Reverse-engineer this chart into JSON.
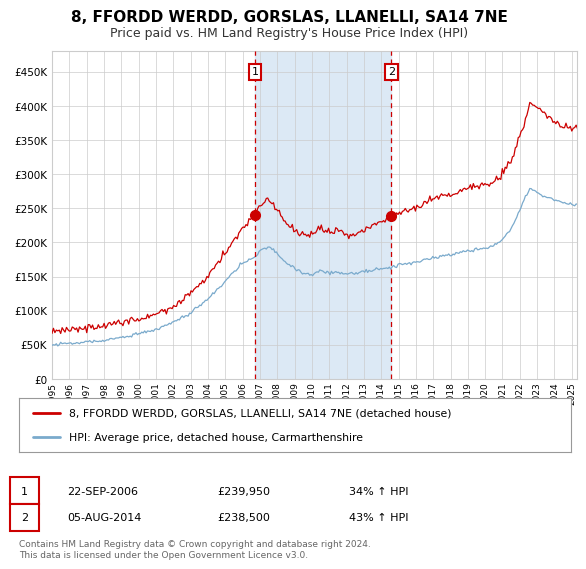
{
  "title": "8, FFORDD WERDD, GORSLAS, LLANELLI, SA14 7NE",
  "subtitle": "Price paid vs. HM Land Registry's House Price Index (HPI)",
  "red_label": "8, FFORDD WERDD, GORSLAS, LLANELLI, SA14 7NE (detached house)",
  "blue_label": "HPI: Average price, detached house, Carmarthenshire",
  "annotation1_date": "22-SEP-2006",
  "annotation1_price": "£239,950",
  "annotation1_hpi": "34% ↑ HPI",
  "annotation2_date": "05-AUG-2014",
  "annotation2_price": "£238,500",
  "annotation2_hpi": "43% ↑ HPI",
  "footer": "Contains HM Land Registry data © Crown copyright and database right 2024.\nThis data is licensed under the Open Government Licence v3.0.",
  "vline1_x": 2006.72,
  "vline2_x": 2014.58,
  "marker1_y": 239950,
  "marker2_y": 238500,
  "shade_color": "#dce9f5",
  "red_color": "#cc0000",
  "blue_color": "#7aaacc",
  "bg_color": "#ffffff",
  "grid_color": "#cccccc",
  "ylim": [
    0,
    480000
  ],
  "xlim_start": 1995.0,
  "xlim_end": 2025.3
}
